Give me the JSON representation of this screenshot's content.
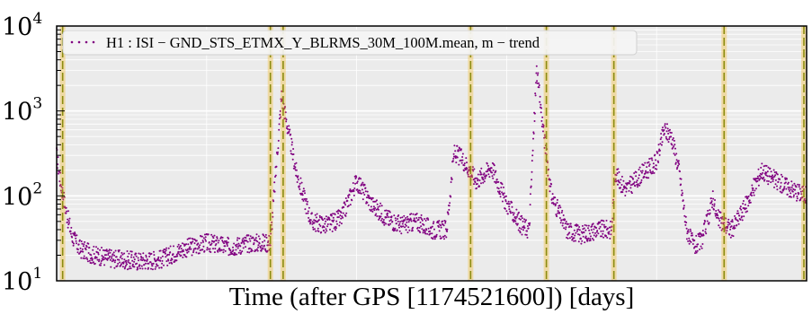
{
  "chart_data": {
    "type": "scatter",
    "scale_y": "log",
    "ylim": [
      10,
      10000
    ],
    "xlim": [
      0,
      100
    ],
    "xlabel": "Time (after GPS [1174521600]) [days]",
    "ylabel": "",
    "title": "",
    "grid": true,
    "legend_position": "top-left",
    "y_ticks": [
      {
        "base": "10",
        "exp": "1"
      },
      {
        "base": "10",
        "exp": "2"
      },
      {
        "base": "10",
        "exp": "3"
      },
      {
        "base": "10",
        "exp": "4"
      }
    ],
    "series": [
      {
        "name": "H1 : ISI − GND_STS_ETMX_Y_BLRMS_30M_100M.mean, m − trend",
        "color": "#800080",
        "x": [
          0,
          0.5,
          1.2,
          2.0,
          3,
          5,
          8,
          11,
          14,
          17,
          20,
          23,
          26,
          28.5,
          30,
          32,
          34,
          36,
          38,
          40,
          42,
          44,
          46,
          48,
          50,
          52,
          53,
          54,
          56,
          58,
          60,
          62,
          63,
          64,
          65,
          66,
          68,
          70,
          72,
          74,
          74.5,
          75,
          76,
          78,
          80,
          81,
          82,
          83,
          84,
          85,
          86,
          87,
          87.5,
          88,
          90,
          92,
          94,
          96,
          98,
          100
        ],
        "y": [
          300,
          150,
          70,
          35,
          24,
          20,
          18,
          17,
          18,
          24,
          28,
          25,
          28,
          28,
          1500,
          180,
          50,
          45,
          55,
          150,
          80,
          55,
          45,
          50,
          40,
          40,
          320,
          280,
          150,
          220,
          80,
          45,
          40,
          3000,
          500,
          100,
          40,
          35,
          40,
          40,
          200,
          150,
          120,
          180,
          250,
          600,
          500,
          200,
          40,
          25,
          30,
          60,
          100,
          55,
          40,
          80,
          200,
          150,
          120,
          100
        ]
      }
    ],
    "vertical_markers": [
      0.8,
      28.5,
      30.2,
      55.2,
      65.3,
      74.3,
      89.0,
      100
    ]
  }
}
